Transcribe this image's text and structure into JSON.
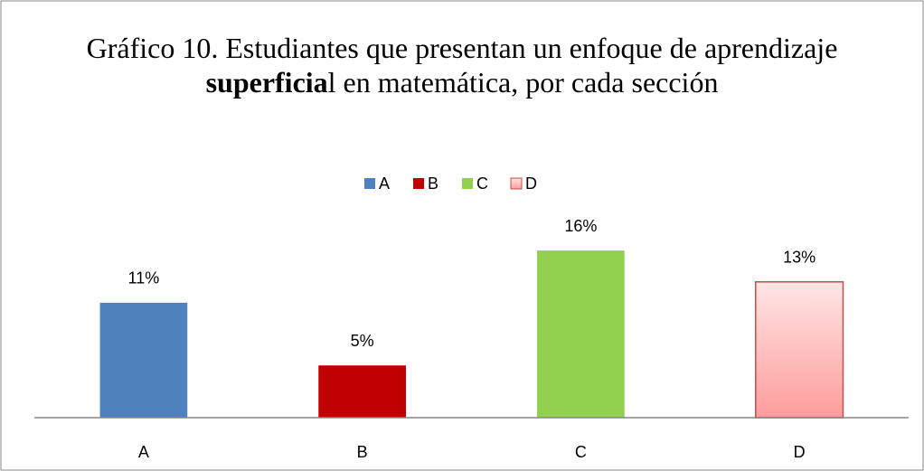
{
  "chart_data": {
    "type": "bar",
    "title": [
      "Gráfico 10. Estudiantes que presentan un enfoque de aprendizaje ",
      "superficia",
      "l en matemática,  por cada sección"
    ],
    "categories": [
      "A",
      "B",
      "C",
      "D"
    ],
    "values": [
      11,
      5,
      16,
      13
    ],
    "value_labels": [
      "11%",
      "5%",
      "16%",
      "13%"
    ],
    "colors": [
      "#4f81bd",
      "#c00000",
      "#92d050",
      "#ffc2c2"
    ],
    "ylim": [
      0,
      18
    ],
    "legend": "top"
  }
}
